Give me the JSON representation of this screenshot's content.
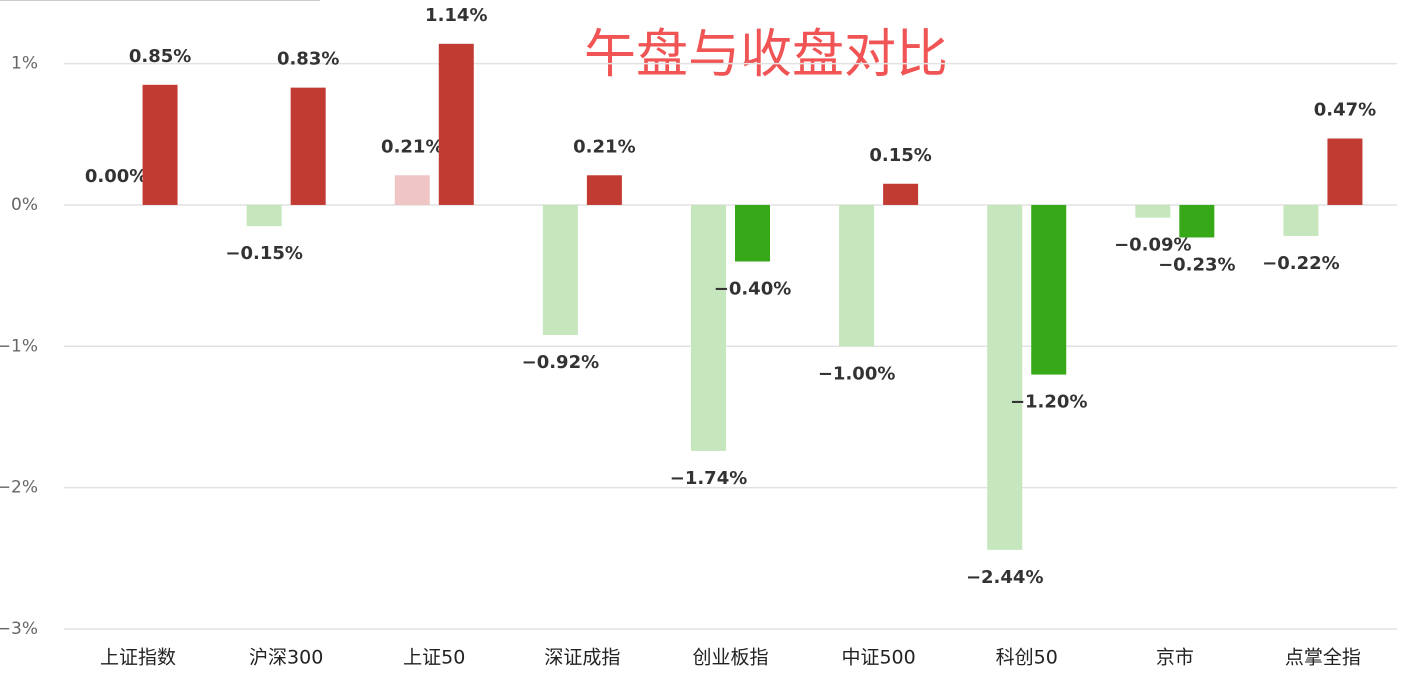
{
  "chart_data": {
    "type": "bar",
    "title": "午盘与收盘对比",
    "categories": [
      "上证指数",
      "沪深300",
      "上证50",
      "深证成指",
      "创业板指",
      "中证500",
      "科创50",
      "京市",
      "点掌全指"
    ],
    "series": [
      {
        "color_positive": "#efc5c5",
        "color_negative": "#c6e6bd",
        "values": [
          0.0,
          -0.15,
          0.21,
          -0.92,
          -1.74,
          -1.0,
          -2.44,
          -0.09,
          -0.22
        ],
        "value_labels": [
          "0.00%",
          "−0.15%",
          "0.21%",
          "−0.92%",
          "−1.74%",
          "−1.00%",
          "−2.44%",
          "−0.09%",
          "−0.22%"
        ]
      },
      {
        "color_positive": "#c23b33",
        "color_negative": "#37a918",
        "values": [
          0.85,
          0.83,
          1.14,
          0.21,
          -0.4,
          0.15,
          -1.2,
          -0.23,
          0.47
        ],
        "value_labels": [
          "0.85%",
          "0.83%",
          "1.14%",
          "0.21%",
          "−0.40%",
          "0.15%",
          "−1.20%",
          "−0.23%",
          "0.47%"
        ]
      }
    ],
    "ylim": [
      -3,
      1.45
    ],
    "yticks": [
      {
        "value": 1,
        "label": "1%"
      },
      {
        "value": 0,
        "label": "0%"
      },
      {
        "value": -1,
        "label": "−1%"
      },
      {
        "value": -2,
        "label": "−2%"
      },
      {
        "value": -3,
        "label": "−3%"
      }
    ],
    "grid": true
  }
}
